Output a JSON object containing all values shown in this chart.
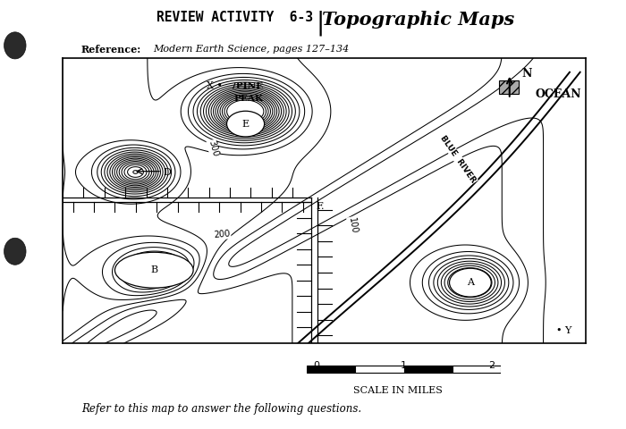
{
  "title_left": "REVIEW ACTIVITY  6-3",
  "title_right": "Topographic Maps",
  "reference_label": "Reference:",
  "reference_text": "Modern Earth Science, pages 127–134",
  "bottom_text": "Refer to this map to answer the following questions.",
  "ocean_label": "OCEAN",
  "river_label": "BLUE  RIVER",
  "north_label": "N",
  "scale_label": "SCALE IN MILES",
  "bg_color": "#ffffff",
  "line_color": "#000000",
  "contour_300": "300",
  "contour_200": "200",
  "contour_100": "100"
}
